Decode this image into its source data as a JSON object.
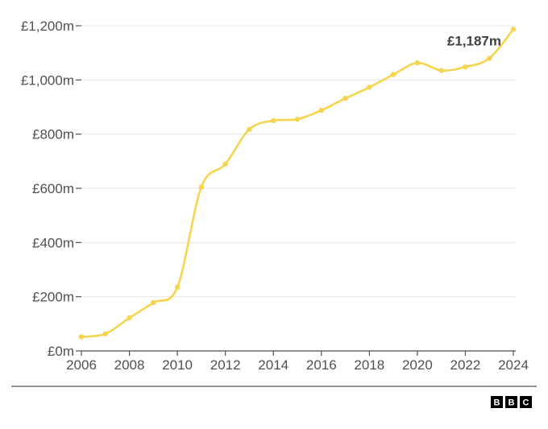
{
  "chart_data": {
    "type": "line",
    "title": "",
    "xlabel": "",
    "ylabel": "",
    "x": [
      2006,
      2007,
      2008,
      2009,
      2010,
      2011,
      2012,
      2013,
      2014,
      2015,
      2016,
      2017,
      2018,
      2019,
      2020,
      2021,
      2022,
      2023,
      2024
    ],
    "series": [
      {
        "values": [
          52,
          63,
          122,
          178,
          235,
          605,
          690,
          818,
          850,
          855,
          888,
          932,
          973,
          1020,
          1063,
          1035,
          1048,
          1080,
          1187
        ]
      }
    ],
    "ylim": [
      0,
      1200
    ],
    "xlim": [
      2006,
      2024
    ],
    "x_ticks": [
      2006,
      2008,
      2010,
      2012,
      2014,
      2016,
      2018,
      2020,
      2022,
      2024
    ],
    "y_ticks": [
      0,
      200,
      400,
      600,
      800,
      1000,
      1200
    ],
    "x_tick_labels": [
      "2006",
      "2008",
      "2010",
      "2012",
      "2014",
      "2016",
      "2018",
      "2020",
      "2022",
      "2024"
    ],
    "y_tick_labels": [
      "£0m",
      "£200m",
      "£400m",
      "£600m",
      "£800m",
      "£1,000m",
      "£1,200m"
    ],
    "annotation": {
      "text": "£1,187m",
      "x": 2024,
      "y": 1187
    },
    "grid": "horizontal",
    "line_color": "#f5d44f"
  },
  "footer": {
    "logo_letters": [
      "B",
      "B",
      "C"
    ]
  }
}
